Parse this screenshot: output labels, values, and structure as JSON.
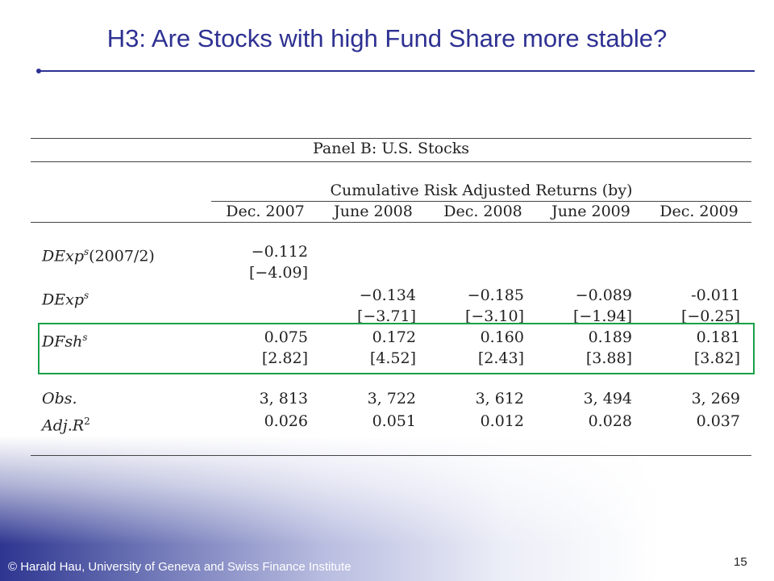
{
  "slide": {
    "title": "H3: Are Stocks with high Fund Share more stable?",
    "footer": "© Harald Hau, University of Geneva and Swiss Finance Institute",
    "page_number": "15",
    "accent_color": "#2e3192",
    "highlight_color": "#1aa048"
  },
  "table": {
    "panel_title": "Panel B: U.S. Stocks",
    "group_header": "Cumulative Risk Adjusted Returns (by)",
    "columns": [
      "Dec. 2007",
      "June 2008",
      "Dec. 2008",
      "June 2009",
      "Dec. 2009"
    ],
    "rows": [
      {
        "label": "DExp",
        "sup": "s",
        "suffix": "(2007/2)",
        "values": [
          "−0.112",
          "",
          "",
          "",
          ""
        ],
        "tstats": [
          "[−4.09]",
          "",
          "",
          "",
          ""
        ]
      },
      {
        "label": "DExp",
        "sup": "s",
        "suffix": "",
        "values": [
          "",
          "−0.134",
          "−0.185",
          "−0.089",
          "-0.011"
        ],
        "tstats": [
          "",
          "[−3.71]",
          "[−3.10]",
          "[−1.94]",
          "[−0.25]"
        ]
      },
      {
        "label": "DFsh",
        "sup": "s",
        "suffix": "",
        "values": [
          "0.075",
          "0.172",
          "0.160",
          "0.189",
          "0.181"
        ],
        "tstats": [
          "[2.82]",
          "[4.52]",
          "[2.43]",
          "[3.88]",
          "[3.82]"
        ]
      }
    ],
    "obs": {
      "label": "Obs.",
      "values": [
        "3, 813",
        "3, 722",
        "3, 612",
        "3, 494",
        "3, 269"
      ]
    },
    "adjr2": {
      "label": "Adj.R",
      "sup": "2",
      "values": [
        "0.026",
        "0.051",
        "0.012",
        "0.028",
        "0.037"
      ]
    }
  }
}
